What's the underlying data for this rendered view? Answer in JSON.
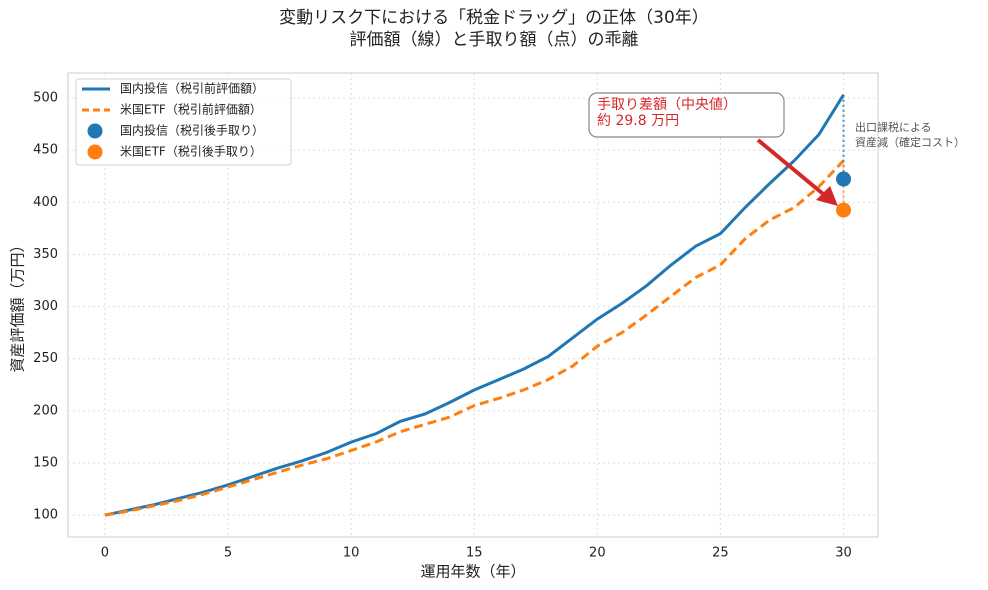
{
  "chart_data": {
    "type": "line",
    "title": "変動リスク下における「税金ドラッグ」の正体（30年）",
    "subtitle": "評価額（線）と手取り額（点）の乖離",
    "xlabel": "運用年数（年）",
    "ylabel": "資産評価額（万円）",
    "x": [
      0,
      1,
      2,
      3,
      4,
      5,
      6,
      7,
      8,
      9,
      10,
      11,
      12,
      13,
      14,
      15,
      16,
      17,
      18,
      19,
      20,
      21,
      22,
      23,
      24,
      25,
      26,
      27,
      28,
      29,
      30
    ],
    "series": [
      {
        "name": "国内投信（税引前評価額）",
        "color": "#1f77b4",
        "linestyle": "solid",
        "values": [
          100,
          105,
          110,
          116,
          122,
          129,
          137,
          145,
          152,
          160,
          170,
          178,
          190,
          197,
          208,
          220,
          230,
          240,
          252,
          270,
          288,
          303,
          320,
          340,
          358,
          370,
          395,
          418,
          440,
          465,
          503
        ]
      },
      {
        "name": "米国ETF（税引前評価額）",
        "color": "#ff7f0e",
        "linestyle": "dashed",
        "values": [
          100,
          104,
          109,
          114,
          120,
          127,
          134,
          141,
          148,
          154,
          162,
          170,
          180,
          187,
          194,
          205,
          212,
          220,
          230,
          243,
          262,
          275,
          292,
          310,
          328,
          340,
          365,
          383,
          395,
          415,
          440
        ]
      }
    ],
    "scatter_series": [
      {
        "name": "国内投信（税引後手取り）",
        "color": "#1f77b4",
        "x": [
          30
        ],
        "y": [
          422.3
        ]
      },
      {
        "name": "米国ETF（税引後手取り）",
        "color": "#ff7f0e",
        "x": [
          30
        ],
        "y": [
          392.5
        ]
      }
    ],
    "annotations": [
      {
        "lines": [
          "手取り差額（中央値）",
          "約 29.8 万円"
        ],
        "color": "#d62728"
      },
      {
        "lines": [
          "出口課税による",
          "資産減（確定コスト）"
        ],
        "color": "#555555"
      }
    ],
    "xlim": [
      -1.5,
      31.4
    ],
    "ylim": [
      79,
      524
    ],
    "xticks": [
      0,
      5,
      10,
      15,
      20,
      25,
      30
    ],
    "yticks": [
      100,
      150,
      200,
      250,
      300,
      350,
      400,
      450,
      500
    ],
    "grid": true,
    "legend": "upper left"
  }
}
